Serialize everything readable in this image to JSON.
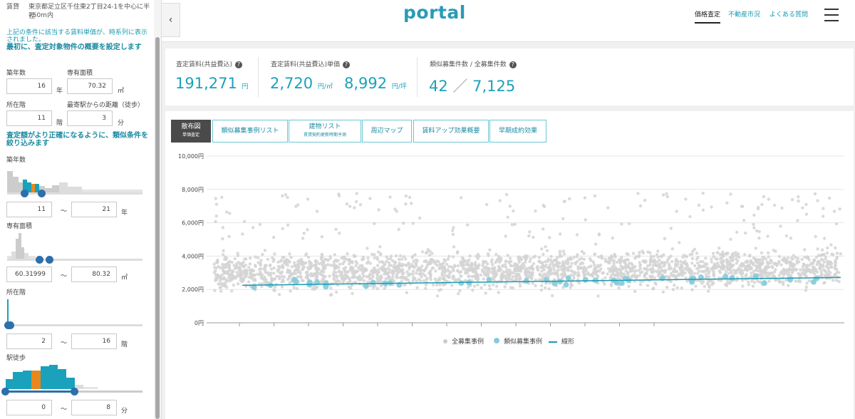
{
  "sidebar": {
    "rent_type": "賃貸",
    "address": "東京都足立区千住東2丁目24-1を中心に半径",
    "radius": "750m内",
    "note": "上記の条件に該当する賃料単価が、時系列に表示されました。",
    "heading1": "最初に、査定対象物件の概要を設定します",
    "age_label": "築年数",
    "age_value": "16",
    "age_unit": "年",
    "area_label": "専有面積",
    "area_value": "70.32",
    "area_unit": "㎡",
    "floor_label": "所在階",
    "floor_value": "11",
    "floor_unit": "階",
    "walk_label": "最寄駅からの距離（徒歩）",
    "walk_value": "3",
    "walk_unit": "分",
    "heading2": "査定額がより正確になるように、類似条件を絞り込みます",
    "f_age_label": "築年数",
    "f_age_min": "11",
    "f_age_max": "21",
    "f_age_unit": "年",
    "f_area_label": "専有面積",
    "f_area_min": "60.31999",
    "f_area_max": "80.32",
    "f_area_unit": "㎡",
    "f_floor_label": "所在階",
    "f_floor_min": "2",
    "f_floor_max": "16",
    "f_floor_unit": "階",
    "f_walk_label": "駅徒歩",
    "f_walk_min": "0",
    "f_walk_max": "8",
    "f_walk_unit": "分",
    "range_sep": "〜"
  },
  "header": {
    "logo": "portal",
    "nav": [
      "価格査定",
      "不動産市況",
      "よくある質問"
    ],
    "collapse_icon": "‹"
  },
  "stats": {
    "rent_label": "査定賃料(共益費込)",
    "rent_value": "191,271",
    "rent_unit": "円",
    "unit_label": "査定賃料(共益費込)単価",
    "unit_sqm_value": "2,720",
    "unit_sqm_unit": "円/㎡",
    "unit_tsubo_value": "8,992",
    "unit_tsubo_unit": "円/坪",
    "count_label": "類似募集件数 / 全募集件数",
    "count_similar": "42",
    "count_sep": "／",
    "count_total": "7,125",
    "help_icon": "?"
  },
  "tabs": [
    {
      "label": "散布図",
      "sub": "単価査定",
      "active": true
    },
    {
      "label": "類似募集事例リスト",
      "sub": "",
      "active": false
    },
    {
      "label": "建物リスト",
      "sub": "賃貸契約更新時期予測",
      "active": false
    },
    {
      "label": "周辺マップ",
      "sub": "",
      "active": false
    },
    {
      "label": "賃料アップ効果概要",
      "sub": "",
      "active": false
    },
    {
      "label": "早期成約効果",
      "sub": "",
      "active": false
    }
  ],
  "chart_data": {
    "type": "scatter",
    "ylim": [
      0,
      10000
    ],
    "yticks": [
      "10,000円",
      "8,000円",
      "6,000円",
      "4,000円",
      "2,000円",
      "0円"
    ],
    "ytick_values": [
      10000,
      8000,
      6000,
      4000,
      2000,
      0
    ],
    "xlabel": "",
    "ylabel": "",
    "grid": true,
    "legend": [
      "全募集事例",
      "類似募集事例",
      "線形"
    ],
    "legend_position": "bottom",
    "series": [
      {
        "name": "全募集事例",
        "count": 7125,
        "typical_range": [
          2000,
          4500
        ],
        "color": "#d3d3d3"
      },
      {
        "name": "類似募集事例",
        "count": 42,
        "typical_range": [
          1800,
          3100
        ],
        "color": "#86cbdc"
      },
      {
        "name": "線形",
        "start": 2250,
        "end": 2720,
        "color": "#1a9bb0"
      }
    ]
  }
}
